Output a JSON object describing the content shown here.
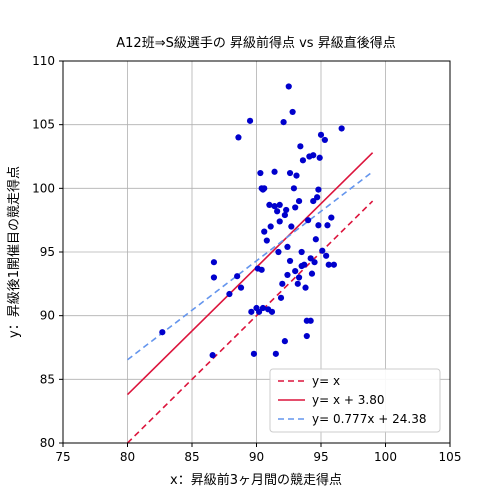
{
  "chart_data": {
    "type": "scatter",
    "title": "A12班⇒S級選手の 昇級前得点 vs 昇級直後得点",
    "xlabel": "x：昇級前3ヶ月間の競走得点",
    "ylabel": "y：昇級後1開催目の競走得点",
    "xlim": [
      75,
      105
    ],
    "ylim": [
      80,
      110
    ],
    "xticks": [
      75,
      80,
      85,
      90,
      95,
      100,
      105
    ],
    "yticks": [
      80,
      85,
      90,
      95,
      100,
      105,
      110
    ],
    "grid": true,
    "legend_position": "lower-right",
    "colors": {
      "points": "#0000cc",
      "identity_line": "#dc143c",
      "shift_line": "#dc143c",
      "regression_line": "#6495ed"
    },
    "points": {
      "x": [
        82.7,
        86.6,
        86.7,
        86.7,
        87.9,
        88.5,
        88.6,
        88.8,
        89.5,
        89.6,
        89.8,
        90.0,
        90.1,
        90.2,
        90.3,
        90.4,
        90.4,
        90.5,
        90.5,
        90.6,
        90.6,
        90.8,
        90.9,
        91.0,
        91.1,
        91.2,
        91.4,
        91.4,
        91.5,
        91.6,
        91.7,
        91.8,
        91.8,
        91.9,
        92.0,
        92.1,
        92.2,
        92.2,
        92.3,
        92.4,
        92.4,
        92.5,
        92.6,
        92.6,
        92.7,
        92.8,
        92.9,
        93.0,
        93.0,
        93.1,
        93.2,
        93.3,
        93.3,
        93.4,
        93.5,
        93.5,
        93.6,
        93.7,
        93.8,
        93.9,
        93.9,
        94.0,
        94.1,
        94.2,
        94.2,
        94.3,
        94.4,
        94.4,
        94.5,
        94.6,
        94.7,
        94.8,
        94.8,
        94.9,
        95.0,
        95.1,
        95.3,
        95.4,
        95.5,
        95.6,
        95.8,
        96.0,
        96.6
      ],
      "y": [
        88.7,
        86.9,
        94.2,
        93.0,
        91.7,
        93.1,
        104.0,
        92.2,
        105.3,
        90.3,
        87.0,
        90.6,
        93.7,
        90.3,
        101.2,
        93.6,
        100.0,
        90.6,
        99.9,
        96.6,
        100.0,
        95.9,
        90.5,
        98.7,
        97.0,
        90.3,
        101.3,
        98.6,
        87.0,
        98.2,
        95.0,
        98.7,
        97.4,
        91.4,
        92.5,
        105.2,
        97.9,
        88.0,
        98.3,
        93.2,
        95.4,
        108.0,
        94.3,
        101.2,
        97.0,
        106.0,
        100.0,
        93.5,
        98.5,
        101.0,
        92.5,
        93.0,
        99.0,
        103.3,
        93.9,
        95.0,
        102.2,
        94.0,
        92.2,
        89.6,
        88.4,
        97.5,
        102.5,
        94.5,
        89.6,
        93.3,
        99.0,
        102.6,
        94.2,
        96.0,
        99.3,
        99.9,
        97.1,
        102.4,
        104.2,
        95.1,
        103.8,
        94.7,
        97.1,
        94.0,
        97.7,
        94.0,
        104.7
      ]
    },
    "lines": [
      {
        "label": "y= x",
        "style": "dashed",
        "x": [
          80,
          99
        ],
        "y": [
          80,
          99
        ]
      },
      {
        "label": "y= x + 3.80",
        "style": "solid",
        "x": [
          80,
          99
        ],
        "y": [
          83.8,
          102.8
        ]
      },
      {
        "label": "y= 0.777x + 24.38",
        "style": "dashed",
        "x": [
          80,
          99
        ],
        "y": [
          86.54,
          101.303
        ]
      }
    ]
  }
}
